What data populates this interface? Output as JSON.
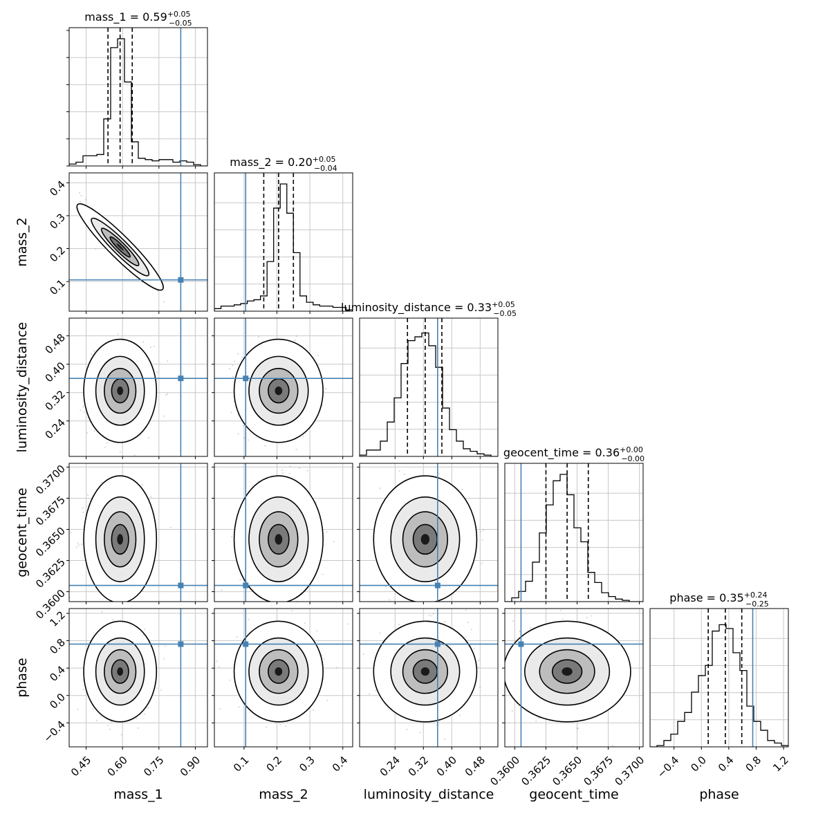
{
  "chart_data": {
    "type": "corner",
    "parameters": [
      "mass_1",
      "mass_2",
      "luminosity_distance",
      "geocent_time",
      "phase"
    ],
    "axis_labels": [
      "mass_1",
      "mass_2",
      "luminosity_distance",
      "geocent_time",
      "phase"
    ],
    "titles": [
      {
        "name": "mass_1",
        "median": "0.59",
        "plus": "+0.05",
        "minus": "−0.05"
      },
      {
        "name": "mass_2",
        "median": "0.20",
        "plus": "+0.05",
        "minus": "−0.04"
      },
      {
        "name": "luminosity_distance",
        "median": "0.33",
        "plus": "+0.05",
        "minus": "−0.05"
      },
      {
        "name": "geocent_time",
        "median": "0.36",
        "plus": "+0.00",
        "minus": "−0.00"
      },
      {
        "name": "phase",
        "median": "0.35",
        "plus": "+0.24",
        "minus": "−0.25"
      }
    ],
    "ranges": [
      [
        0.38,
        0.95
      ],
      [
        0.01,
        0.43
      ],
      [
        0.14,
        0.53
      ],
      [
        0.3592,
        0.3703
      ],
      [
        -0.75,
        1.27
      ]
    ],
    "ticks": [
      {
        "values": [
          0.45,
          0.6,
          0.75,
          0.9
        ],
        "labels": [
          "0.45",
          "0.60",
          "0.75",
          "0.90"
        ]
      },
      {
        "values": [
          0.1,
          0.2,
          0.3,
          0.4
        ],
        "labels": [
          "0.1",
          "0.2",
          "0.3",
          "0.4"
        ]
      },
      {
        "values": [
          0.24,
          0.32,
          0.4,
          0.48
        ],
        "labels": [
          "0.24",
          "0.32",
          "0.40",
          "0.48"
        ]
      },
      {
        "values": [
          0.36,
          0.3625,
          0.365,
          0.3675,
          0.37
        ],
        "labels": [
          "0.3600",
          "0.3625",
          "0.3650",
          "0.3675",
          "0.3700"
        ]
      },
      {
        "values": [
          -0.4,
          0.0,
          0.4,
          0.8,
          1.2
        ],
        "labels": [
          "−0.4",
          "0.0",
          "0.4",
          "0.8",
          "1.2"
        ]
      }
    ],
    "truths": [
      0.84,
      0.105,
      0.36,
      0.3605,
      0.75
    ],
    "quantiles": [
      [
        0.54,
        0.59,
        0.64
      ],
      [
        0.16,
        0.205,
        0.25
      ],
      [
        0.275,
        0.325,
        0.372
      ],
      [
        0.3625,
        0.3642,
        0.3659
      ],
      [
        0.1,
        0.35,
        0.59
      ]
    ],
    "marginals": [
      {
        "density": [
          0.015,
          0.03,
          0.08,
          0.08,
          0.09,
          0.37,
          0.93,
          1.0,
          0.66,
          0.19,
          0.06,
          0.05,
          0.04,
          0.05,
          0.05,
          0.03,
          0.04,
          0.03,
          0.01,
          0.0
        ]
      },
      {
        "density": [
          0.02,
          0.04,
          0.04,
          0.05,
          0.06,
          0.08,
          0.09,
          0.12,
          0.39,
          0.81,
          1.0,
          0.77,
          0.46,
          0.12,
          0.07,
          0.05,
          0.04,
          0.04,
          0.03,
          0.03,
          0.01
        ]
      },
      {
        "density": [
          0.01,
          0.05,
          0.05,
          0.12,
          0.27,
          0.46,
          0.73,
          0.91,
          0.94,
          0.97,
          0.87,
          0.7,
          0.38,
          0.21,
          0.12,
          0.06,
          0.04,
          0.02,
          0.01,
          0.0
        ]
      },
      {
        "density": [
          0.0,
          0.03,
          0.08,
          0.16,
          0.31,
          0.54,
          0.76,
          0.95,
          1.0,
          0.84,
          0.58,
          0.47,
          0.23,
          0.15,
          0.07,
          0.04,
          0.02,
          0.01,
          0.0,
          0.0
        ]
      },
      {
        "density": [
          0.0,
          0.01,
          0.05,
          0.1,
          0.2,
          0.27,
          0.43,
          0.56,
          0.64,
          0.91,
          0.96,
          0.93,
          0.74,
          0.6,
          0.32,
          0.2,
          0.13,
          0.05,
          0.03,
          0.01
        ]
      }
    ],
    "grid": true
  }
}
